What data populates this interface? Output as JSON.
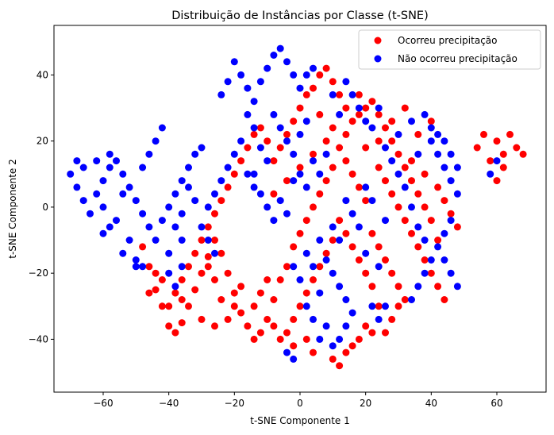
{
  "chart_data": {
    "type": "scatter",
    "title": "Distribuição de Instâncias por Classe (t-SNE)",
    "xlabel": "t-SNE Componente 1",
    "ylabel": "t-SNE Componente 2",
    "xlim": [
      -75,
      75
    ],
    "ylim": [
      -56,
      55
    ],
    "xticks": [
      -60,
      -40,
      -20,
      0,
      20,
      40,
      60
    ],
    "yticks": [
      -40,
      -20,
      0,
      20,
      40
    ],
    "grid": false,
    "legend_position": "top-right",
    "series": [
      {
        "name": "Ocorreu precipitação",
        "color": "#ff0000",
        "points": [
          [
            -48,
            -12
          ],
          [
            -46,
            -18
          ],
          [
            -44,
            -25
          ],
          [
            -42,
            -30
          ],
          [
            -40,
            -36
          ],
          [
            -38,
            -38
          ],
          [
            -36,
            -35
          ],
          [
            -34,
            -30
          ],
          [
            -32,
            -25
          ],
          [
            -30,
            -20
          ],
          [
            -28,
            -15
          ],
          [
            -26,
            -10
          ],
          [
            -24,
            -14
          ],
          [
            -22,
            -20
          ],
          [
            -20,
            -26
          ],
          [
            -18,
            -32
          ],
          [
            -16,
            -36
          ],
          [
            -14,
            -40
          ],
          [
            -12,
            -38
          ],
          [
            -10,
            -34
          ],
          [
            -8,
            -28
          ],
          [
            -6,
            -22
          ],
          [
            -4,
            -18
          ],
          [
            -2,
            -12
          ],
          [
            0,
            -8
          ],
          [
            2,
            -4
          ],
          [
            4,
            0
          ],
          [
            6,
            4
          ],
          [
            8,
            8
          ],
          [
            10,
            12
          ],
          [
            12,
            18
          ],
          [
            14,
            22
          ],
          [
            16,
            26
          ],
          [
            18,
            28
          ],
          [
            20,
            30
          ],
          [
            22,
            32
          ],
          [
            24,
            28
          ],
          [
            26,
            24
          ],
          [
            28,
            20
          ],
          [
            30,
            16
          ],
          [
            32,
            12
          ],
          [
            34,
            8
          ],
          [
            36,
            4
          ],
          [
            38,
            0
          ],
          [
            40,
            -4
          ],
          [
            42,
            -10
          ],
          [
            30,
            -30
          ],
          [
            28,
            -34
          ],
          [
            26,
            -38
          ],
          [
            24,
            -30
          ],
          [
            22,
            -24
          ],
          [
            20,
            -20
          ],
          [
            18,
            -16
          ],
          [
            16,
            -12
          ],
          [
            14,
            -8
          ],
          [
            12,
            -4
          ],
          [
            10,
            -10
          ],
          [
            8,
            -14
          ],
          [
            6,
            -18
          ],
          [
            4,
            -22
          ],
          [
            2,
            -26
          ],
          [
            0,
            -30
          ],
          [
            -2,
            -34
          ],
          [
            -4,
            -38
          ],
          [
            -6,
            -40
          ],
          [
            10,
            -46
          ],
          [
            12,
            -48
          ],
          [
            14,
            -44
          ],
          [
            16,
            -42
          ],
          [
            18,
            -40
          ],
          [
            20,
            -36
          ],
          [
            22,
            -38
          ],
          [
            6,
            40
          ],
          [
            8,
            42
          ],
          [
            10,
            38
          ],
          [
            4,
            36
          ],
          [
            2,
            34
          ],
          [
            0,
            30
          ],
          [
            -2,
            26
          ],
          [
            -4,
            22
          ],
          [
            -6,
            18
          ],
          [
            -8,
            14
          ],
          [
            -10,
            20
          ],
          [
            -12,
            24
          ],
          [
            -14,
            22
          ],
          [
            -16,
            18
          ],
          [
            -18,
            14
          ],
          [
            -20,
            10
          ],
          [
            -22,
            6
          ],
          [
            -24,
            2
          ],
          [
            -26,
            -2
          ],
          [
            -28,
            -6
          ],
          [
            -30,
            -10
          ],
          [
            -32,
            -14
          ],
          [
            -34,
            -18
          ],
          [
            -36,
            -22
          ],
          [
            -38,
            -26
          ],
          [
            -40,
            -30
          ],
          [
            60,
            20
          ],
          [
            62,
            16
          ],
          [
            64,
            22
          ],
          [
            66,
            18
          ],
          [
            58,
            14
          ],
          [
            56,
            22
          ],
          [
            54,
            18
          ],
          [
            62,
            12
          ],
          [
            60,
            8
          ],
          [
            68,
            16
          ],
          [
            24,
            12
          ],
          [
            26,
            8
          ],
          [
            28,
            4
          ],
          [
            30,
            0
          ],
          [
            32,
            -4
          ],
          [
            34,
            -8
          ],
          [
            36,
            -12
          ],
          [
            38,
            -16
          ],
          [
            40,
            -20
          ],
          [
            42,
            -24
          ],
          [
            44,
            -28
          ],
          [
            20,
            2
          ],
          [
            18,
            6
          ],
          [
            16,
            10
          ],
          [
            14,
            14
          ],
          [
            22,
            -8
          ],
          [
            24,
            -12
          ],
          [
            26,
            -16
          ],
          [
            28,
            -20
          ],
          [
            30,
            -24
          ],
          [
            32,
            -28
          ],
          [
            -18,
            -24
          ],
          [
            -20,
            -30
          ],
          [
            -22,
            -34
          ],
          [
            -24,
            -28
          ],
          [
            -26,
            -22
          ],
          [
            -28,
            -18
          ],
          [
            -14,
            -30
          ],
          [
            -12,
            -26
          ],
          [
            -10,
            -22
          ],
          [
            -8,
            -36
          ],
          [
            6,
            28
          ],
          [
            10,
            24
          ],
          [
            14,
            30
          ],
          [
            18,
            34
          ],
          [
            12,
            34
          ],
          [
            8,
            20
          ],
          [
            4,
            16
          ],
          [
            0,
            12
          ],
          [
            -4,
            8
          ],
          [
            -8,
            4
          ],
          [
            2,
            -40
          ],
          [
            4,
            -44
          ],
          [
            -2,
            -42
          ],
          [
            20,
            18
          ],
          [
            24,
            20
          ],
          [
            28,
            26
          ],
          [
            32,
            30
          ],
          [
            36,
            22
          ],
          [
            40,
            26
          ],
          [
            34,
            14
          ],
          [
            38,
            10
          ],
          [
            42,
            6
          ],
          [
            44,
            2
          ],
          [
            46,
            -2
          ],
          [
            48,
            -6
          ],
          [
            -44,
            -20
          ],
          [
            -46,
            -26
          ],
          [
            -42,
            -22
          ],
          [
            -36,
            -28
          ],
          [
            -30,
            -34
          ],
          [
            -26,
            -36
          ]
        ]
      },
      {
        "name": "Não ocorreu precipitação",
        "color": "#0000ff",
        "points": [
          [
            -70,
            10
          ],
          [
            -68,
            6
          ],
          [
            -66,
            2
          ],
          [
            -64,
            -2
          ],
          [
            -62,
            4
          ],
          [
            -60,
            8
          ],
          [
            -58,
            12
          ],
          [
            -56,
            14
          ],
          [
            -54,
            10
          ],
          [
            -52,
            6
          ],
          [
            -50,
            2
          ],
          [
            -48,
            -2
          ],
          [
            -46,
            -6
          ],
          [
            -44,
            -10
          ],
          [
            -42,
            -4
          ],
          [
            -40,
            0
          ],
          [
            -38,
            4
          ],
          [
            -36,
            8
          ],
          [
            -34,
            12
          ],
          [
            -32,
            16
          ],
          [
            -30,
            18
          ],
          [
            -44,
            20
          ],
          [
            -42,
            24
          ],
          [
            -46,
            16
          ],
          [
            -48,
            12
          ],
          [
            -38,
            -6
          ],
          [
            -36,
            -10
          ],
          [
            -40,
            -14
          ],
          [
            -52,
            -10
          ],
          [
            -56,
            -4
          ],
          [
            -62,
            14
          ],
          [
            -66,
            12
          ],
          [
            -68,
            14
          ],
          [
            -60,
            0
          ],
          [
            -58,
            -6
          ],
          [
            -54,
            -14
          ],
          [
            -50,
            -18
          ],
          [
            -20,
            44
          ],
          [
            -18,
            40
          ],
          [
            -16,
            36
          ],
          [
            -14,
            32
          ],
          [
            -12,
            38
          ],
          [
            -10,
            42
          ],
          [
            -8,
            46
          ],
          [
            -6,
            48
          ],
          [
            -4,
            44
          ],
          [
            -2,
            40
          ],
          [
            0,
            36
          ],
          [
            2,
            40
          ],
          [
            4,
            42
          ],
          [
            -22,
            38
          ],
          [
            -24,
            34
          ],
          [
            -16,
            28
          ],
          [
            -14,
            24
          ],
          [
            -18,
            20
          ],
          [
            -20,
            16
          ],
          [
            -22,
            12
          ],
          [
            -24,
            8
          ],
          [
            -26,
            4
          ],
          [
            -28,
            0
          ],
          [
            -12,
            4
          ],
          [
            -10,
            0
          ],
          [
            -8,
            -4
          ],
          [
            -14,
            6
          ],
          [
            -16,
            10
          ],
          [
            -6,
            2
          ],
          [
            -4,
            -2
          ],
          [
            -2,
            8
          ],
          [
            0,
            10
          ],
          [
            2,
            6
          ],
          [
            4,
            14
          ],
          [
            6,
            10
          ],
          [
            8,
            16
          ],
          [
            6,
            -10
          ],
          [
            8,
            -16
          ],
          [
            10,
            -20
          ],
          [
            12,
            -24
          ],
          [
            14,
            -28
          ],
          [
            16,
            -32
          ],
          [
            8,
            -36
          ],
          [
            6,
            -40
          ],
          [
            4,
            -34
          ],
          [
            2,
            -30
          ],
          [
            10,
            -42
          ],
          [
            12,
            -40
          ],
          [
            14,
            -36
          ],
          [
            6,
            -26
          ],
          [
            -4,
            -44
          ],
          [
            -2,
            -46
          ],
          [
            40,
            20
          ],
          [
            42,
            16
          ],
          [
            44,
            12
          ],
          [
            46,
            8
          ],
          [
            48,
            4
          ],
          [
            46,
            -4
          ],
          [
            44,
            -8
          ],
          [
            42,
            -12
          ],
          [
            40,
            -16
          ],
          [
            38,
            -20
          ],
          [
            36,
            -24
          ],
          [
            34,
            -28
          ],
          [
            38,
            -10
          ],
          [
            36,
            -6
          ],
          [
            34,
            0
          ],
          [
            32,
            6
          ],
          [
            30,
            10
          ],
          [
            28,
            14
          ],
          [
            26,
            18
          ],
          [
            30,
            22
          ],
          [
            34,
            26
          ],
          [
            20,
            6
          ],
          [
            22,
            2
          ],
          [
            18,
            -6
          ],
          [
            16,
            -2
          ],
          [
            20,
            -14
          ],
          [
            24,
            -18
          ],
          [
            26,
            -4
          ],
          [
            36,
            16
          ],
          [
            38,
            28
          ],
          [
            40,
            24
          ],
          [
            42,
            22
          ],
          [
            44,
            20
          ],
          [
            46,
            16
          ],
          [
            48,
            12
          ],
          [
            44,
            -16
          ],
          [
            46,
            -20
          ],
          [
            48,
            -24
          ],
          [
            -40,
            -20
          ],
          [
            -38,
            -24
          ],
          [
            -36,
            -18
          ],
          [
            -30,
            -6
          ],
          [
            -28,
            -10
          ],
          [
            -26,
            -14
          ],
          [
            -32,
            2
          ],
          [
            -34,
            6
          ],
          [
            -36,
            -2
          ],
          [
            14,
            38
          ],
          [
            16,
            34
          ],
          [
            18,
            30
          ],
          [
            20,
            26
          ],
          [
            12,
            28
          ],
          [
            10,
            34
          ],
          [
            22,
            24
          ],
          [
            24,
            30
          ],
          [
            -4,
            20
          ],
          [
            -2,
            16
          ],
          [
            0,
            22
          ],
          [
            2,
            26
          ],
          [
            -6,
            24
          ],
          [
            -8,
            28
          ],
          [
            58,
            10
          ],
          [
            60,
            14
          ],
          [
            2,
            -14
          ],
          [
            4,
            -18
          ],
          [
            0,
            -22
          ],
          [
            -2,
            -18
          ],
          [
            22,
            -30
          ],
          [
            24,
            -34
          ],
          [
            26,
            -30
          ],
          [
            -54,
            4
          ],
          [
            -58,
            16
          ],
          [
            -60,
            -8
          ],
          [
            -50,
            -16
          ],
          [
            -48,
            -18
          ],
          [
            10,
            -6
          ],
          [
            12,
            -10
          ],
          [
            14,
            2
          ],
          [
            -10,
            14
          ],
          [
            -12,
            18
          ],
          [
            -14,
            10
          ]
        ]
      }
    ]
  }
}
